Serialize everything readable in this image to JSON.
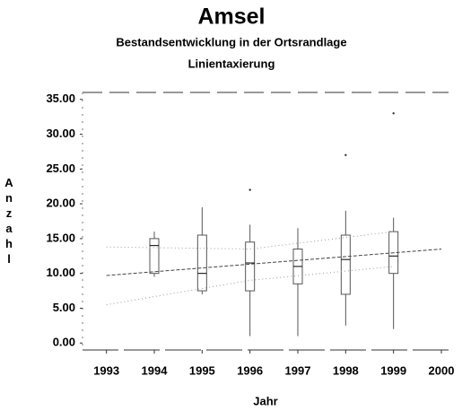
{
  "chart_data": {
    "type": "box",
    "title": "Amsel",
    "subtitle": [
      "Bestandsentwicklung in der Ortsrandlage",
      "Linientaxierung"
    ],
    "x_label": "Jahr",
    "y_label": "Anzahl",
    "xlim": [
      1992.5,
      2000.15
    ],
    "xticks": [
      1993,
      1994,
      1995,
      1996,
      1997,
      1998,
      1999,
      2000
    ],
    "ylim": [
      -1,
      36
    ],
    "yticks": [
      {
        "value": 0,
        "label": "0.00"
      },
      {
        "value": 5,
        "label": "5.00"
      },
      {
        "value": 10,
        "label": "10.00"
      },
      {
        "value": 15,
        "label": "15.00"
      },
      {
        "value": 20,
        "label": "20.00"
      },
      {
        "value": 25,
        "label": "25.00"
      },
      {
        "value": 30,
        "label": "30.00"
      },
      {
        "value": 35,
        "label": "35.00"
      }
    ],
    "color": "#555555",
    "boxes": {
      "x": [
        1994,
        1995,
        1996,
        1997,
        1998,
        1999
      ],
      "min": [
        9.5,
        7,
        1,
        1,
        2.5,
        2
      ],
      "q1": [
        10,
        7.5,
        7.5,
        8.5,
        7,
        10
      ],
      "median": [
        14,
        10,
        11.5,
        11,
        12,
        12.5
      ],
      "q3": [
        15,
        15.5,
        14.5,
        13.5,
        15.5,
        16
      ],
      "max": [
        16,
        19.5,
        17,
        16.5,
        19,
        18
      ]
    },
    "outliers": {
      "x": [
        1996,
        1998,
        1999
      ],
      "values": [
        22,
        27,
        33
      ]
    },
    "lines": [
      {
        "x": [
          1993,
          2000
        ],
        "values": [
          9.7,
          13.5
        ],
        "color": "#444444",
        "dash": "4 2"
      },
      {
        "x": [
          1993,
          1996,
          1999
        ],
        "values": [
          5.5,
          9,
          11
        ],
        "color": "#999999",
        "dash": "1 3"
      },
      {
        "x": [
          1993,
          1996,
          1999
        ],
        "values": [
          13.8,
          13.5,
          16
        ],
        "color": "#999999",
        "dash": "1 3"
      }
    ]
  }
}
